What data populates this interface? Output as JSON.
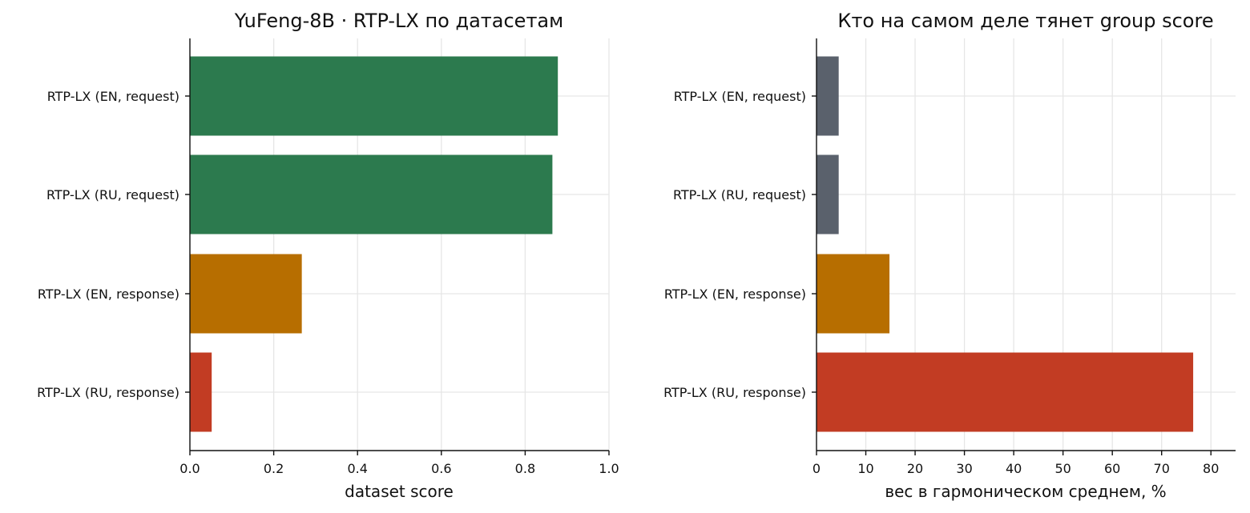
{
  "chart_data": [
    {
      "type": "bar",
      "orientation": "horizontal",
      "title": "YuFeng-8B · RTP-LX по датасетам",
      "xlabel": "dataset score",
      "ylabel": "",
      "categories": [
        "RTP-LX (EN, request)",
        "RTP-LX (RU, request)",
        "RTP-LX (EN, response)",
        "RTP-LX (RU, response)"
      ],
      "values": [
        0.878,
        0.865,
        0.267,
        0.052
      ],
      "colors": [
        "#2c7a4e",
        "#2c7a4e",
        "#b76e00",
        "#c23c23"
      ],
      "xlim": [
        0,
        1.0
      ],
      "xticks": [
        "0.0",
        "0.2",
        "0.4",
        "0.6",
        "0.8",
        "1.0"
      ],
      "xtick_values": [
        0,
        0.2,
        0.4,
        0.6,
        0.8,
        1.0
      ],
      "grid": true
    },
    {
      "type": "bar",
      "orientation": "horizontal",
      "title": "Кто на самом деле тянет group score",
      "xlabel": "вес в гармоническом среднем, %",
      "ylabel": "",
      "categories": [
        "RTP-LX (EN, request)",
        "RTP-LX (RU, request)",
        "RTP-LX (EN, response)",
        "RTP-LX (RU, response)"
      ],
      "values": [
        4.5,
        4.5,
        14.8,
        76.4
      ],
      "colors": [
        "#5a616c",
        "#5a616c",
        "#b76e00",
        "#c23c23"
      ],
      "xlim": [
        0,
        85
      ],
      "xticks": [
        "0",
        "10",
        "20",
        "30",
        "40",
        "50",
        "60",
        "70",
        "80"
      ],
      "xtick_values": [
        0,
        10,
        20,
        30,
        40,
        50,
        60,
        70,
        80
      ],
      "grid": true
    }
  ]
}
